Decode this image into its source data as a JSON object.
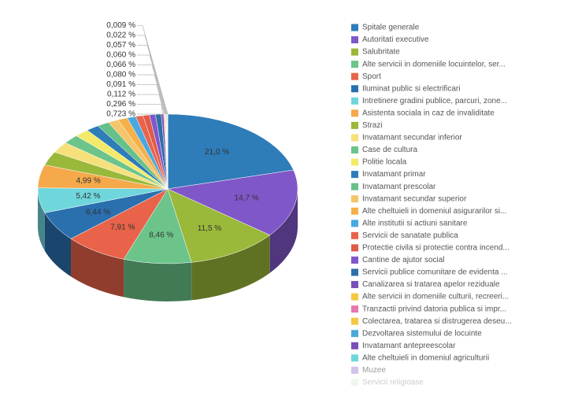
{
  "chart_data": {
    "type": "pie3d",
    "categories": [
      "Spitale generale",
      "Autoritati executive",
      "Salubritate",
      "Alte servicii in domeniile locuintelor, ser...",
      "Sport",
      "Iluminat public si electrificari",
      "Intretinere gradini publice, parcuri, zone...",
      "Asistenta sociala in caz de invaliditate",
      "Strazi",
      "Invatamant secundar inferior",
      "Case de cultura",
      "Politie locala",
      "Invatamant primar",
      "Invatamant prescolar",
      "Invatamant secundar superior",
      "Alte cheltuieli in domeniul asigurarilor si...",
      "Alte institutii si actiuni sanitare",
      "Servicii de sanatate publica",
      "Protectie civila si protectie contra incend...",
      "Cantine de ajutor social",
      "Servicii publice comunitare de evidenta ...",
      "Canalizarea si tratarea apelor reziduale",
      "Alte servicii in domeniile culturii, recreeri...",
      "Tranzactii privind datoria publica si impr...",
      "Colectarea, tratarea si distrugerea deseu...",
      "Dezvoltarea sistemului de locuinte",
      "Invatamant antepreescolar",
      "Alte cheltuieli in domeniul agriculturii",
      "Muzee",
      "Servicii religioase"
    ],
    "values": [
      21.0,
      14.7,
      11.5,
      8.46,
      7.91,
      6.44,
      5.42,
      4.99,
      3.0,
      2.4,
      2.0,
      1.8,
      1.6,
      1.5,
      1.3,
      1.2,
      1.1,
      0.9,
      0.8,
      0.75,
      0.723,
      0.296,
      0.112,
      0.091,
      0.08,
      0.066,
      0.06,
      0.057,
      0.022,
      0.009
    ],
    "value_labels": [
      "21,0 %",
      "14,7 %",
      "11,5 %",
      "8,46 %",
      "7,91 %",
      "6,44 %",
      "5,42 %",
      "4,99 %",
      null,
      null,
      null,
      null,
      null,
      null,
      null,
      null,
      null,
      null,
      null,
      null,
      "0,723 %",
      "0,296 %",
      "0,112 %",
      "0,091 %",
      "0,080 %",
      "0,066 %",
      "0,060 %",
      "0,057 %",
      "0,022 %",
      "0,009 %"
    ],
    "colors": [
      "#2e7cb8",
      "#8057c9",
      "#9ab83a",
      "#6cc48a",
      "#e8634a",
      "#2a6fae",
      "#6fd6dc",
      "#f5a94a",
      "#9ab83a",
      "#f6e07a",
      "#6cc48a",
      "#f3ea6a",
      "#2e7cb8",
      "#65c08a",
      "#f4c56b",
      "#f5b04a",
      "#4aa8e0",
      "#e8634a",
      "#e05a48",
      "#8057c9",
      "#2e6fa8",
      "#7b4fb8",
      "#f4c842",
      "#e877b0",
      "#f4c842",
      "#4aa8d8",
      "#7b4fb8",
      "#6fd6dc",
      "#b39ddb",
      "#c8e6c9"
    ]
  }
}
